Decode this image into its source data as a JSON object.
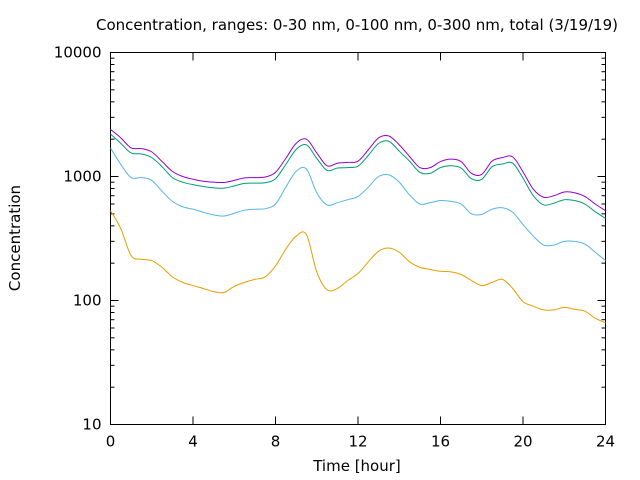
{
  "chart_data": {
    "type": "line",
    "title": "Concentration, ranges: 0-30 nm, 0-100 nm, 0-300 nm, total (3/19/19)",
    "xlabel": "Time [hour]",
    "ylabel": "Concentration",
    "xlim": [
      0,
      24
    ],
    "ylim": [
      10,
      10000
    ],
    "yscale": "log",
    "xticks": [
      0,
      4,
      8,
      12,
      16,
      20,
      24
    ],
    "xtick_labels": [
      "0",
      "4",
      "8",
      "12",
      "16",
      "20",
      "24"
    ],
    "yticks": [
      10,
      100,
      1000,
      10000
    ],
    "ytick_labels": [
      "10",
      "100",
      "1000",
      "10000"
    ],
    "grid": false,
    "legend": "none",
    "x": [
      0,
      0.5,
      1,
      1.5,
      2,
      2.5,
      3,
      3.5,
      4,
      4.5,
      5,
      5.5,
      6,
      6.5,
      7,
      7.5,
      8,
      8.5,
      9,
      9.5,
      10,
      10.5,
      11,
      11.5,
      12,
      12.5,
      13,
      13.5,
      14,
      14.5,
      15,
      15.5,
      16,
      16.5,
      17,
      17.5,
      18,
      18.5,
      19,
      19.5,
      20,
      20.5,
      21,
      21.5,
      22,
      22.5,
      23,
      23.5,
      24
    ],
    "series": [
      {
        "color": "#e69f00",
        "values": [
          530,
          380,
          230,
          215,
          210,
          185,
          155,
          140,
          132,
          125,
          118,
          116,
          130,
          140,
          148,
          155,
          190,
          260,
          330,
          340,
          170,
          122,
          125,
          145,
          165,
          205,
          250,
          265,
          245,
          205,
          185,
          178,
          172,
          170,
          162,
          145,
          132,
          140,
          148,
          125,
          98,
          90,
          84,
          84,
          88,
          85,
          82,
          72,
          66
        ]
      },
      {
        "color": "#56b4e9",
        "values": [
          1700,
          1250,
          980,
          980,
          930,
          760,
          630,
          570,
          545,
          515,
          490,
          480,
          505,
          535,
          545,
          550,
          600,
          820,
          1100,
          1150,
          740,
          590,
          615,
          650,
          690,
          820,
          1000,
          1030,
          900,
          710,
          600,
          615,
          640,
          630,
          600,
          500,
          495,
          545,
          560,
          515,
          410,
          330,
          280,
          280,
          300,
          300,
          285,
          245,
          210
        ]
      },
      {
        "color": "#009e73",
        "values": [
          2200,
          1850,
          1550,
          1520,
          1420,
          1200,
          980,
          900,
          860,
          830,
          810,
          805,
          840,
          880,
          885,
          890,
          960,
          1250,
          1650,
          1800,
          1400,
          1120,
          1170,
          1180,
          1210,
          1480,
          1850,
          1920,
          1600,
          1330,
          1080,
          1060,
          1180,
          1220,
          1170,
          960,
          950,
          1200,
          1260,
          1280,
          970,
          700,
          590,
          610,
          650,
          640,
          600,
          520,
          460
        ]
      },
      {
        "color": "#9400d3",
        "values": [
          2400,
          2050,
          1700,
          1680,
          1580,
          1320,
          1100,
          1000,
          950,
          915,
          900,
          895,
          930,
          975,
          980,
          990,
          1080,
          1400,
          1850,
          2000,
          1550,
          1220,
          1280,
          1300,
          1330,
          1640,
          2050,
          2120,
          1800,
          1450,
          1180,
          1180,
          1320,
          1380,
          1320,
          1060,
          1040,
          1330,
          1420,
          1440,
          1090,
          790,
          680,
          700,
          750,
          740,
          690,
          600,
          530
        ]
      }
    ]
  }
}
